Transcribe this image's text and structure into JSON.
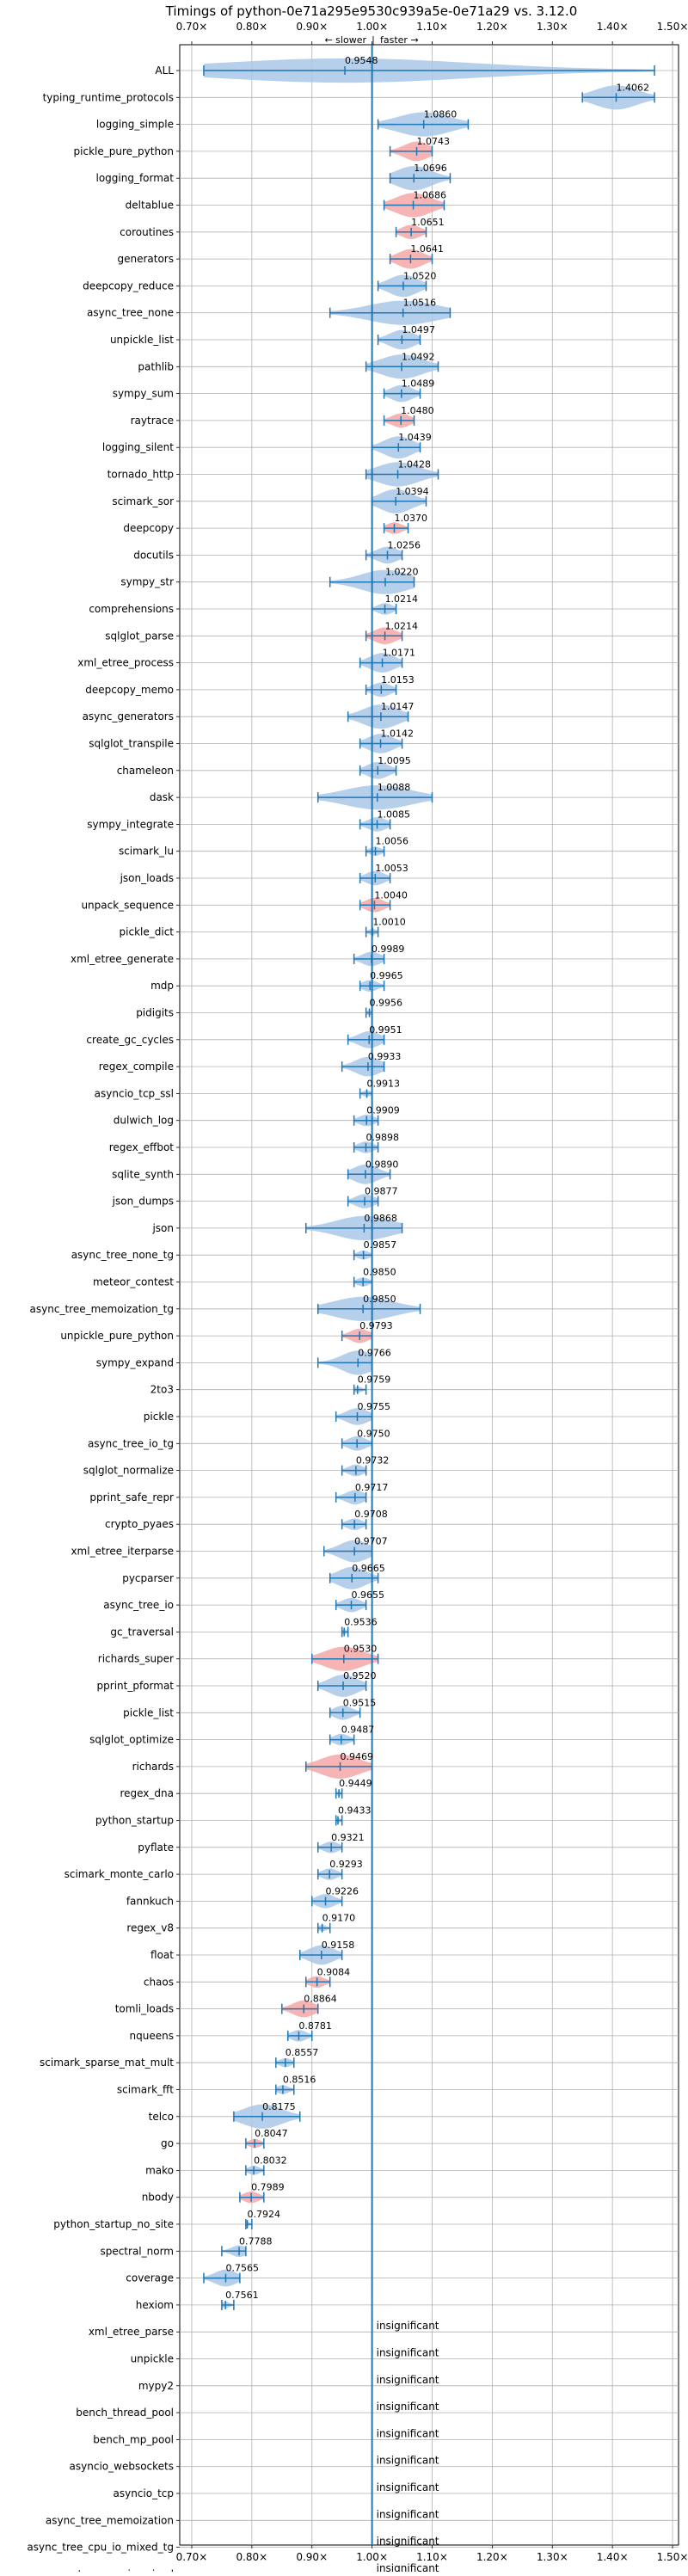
{
  "chart_data": {
    "type": "violin",
    "title": "Timings of python-0e71a295e9530c939a5e-0e71a29 vs. 3.12.0",
    "direction_labels": {
      "slower": "← slower",
      "separator": "|",
      "faster": "faster →"
    },
    "xlim": [
      0.68,
      1.51
    ],
    "x_ticks": [
      0.7,
      0.8,
      0.9,
      1.0,
      1.1,
      1.2,
      1.3,
      1.4,
      1.5
    ],
    "x_tick_labels": [
      "0.70×",
      "0.80×",
      "0.90×",
      "1.00×",
      "1.10×",
      "1.20×",
      "1.30×",
      "1.40×",
      "1.50×"
    ],
    "reference_line": 1.0,
    "grid": true,
    "colors": {
      "faster": "#a9c7e6",
      "slower": "#f4a7a7",
      "line": "#1f77b4",
      "insignificant": "#cccccc"
    },
    "benchmarks": [
      {
        "name": "ALL",
        "value": 0.9548,
        "label": "0.9548",
        "low": 0.72,
        "high": 1.47,
        "color": "faster"
      },
      {
        "name": "typing_runtime_protocols",
        "value": 1.4062,
        "label": "1.4062",
        "low": 1.35,
        "high": 1.47,
        "color": "faster"
      },
      {
        "name": "logging_simple",
        "value": 1.086,
        "label": "1.0860",
        "low": 1.01,
        "high": 1.16,
        "color": "faster"
      },
      {
        "name": "pickle_pure_python",
        "value": 1.0743,
        "label": "1.0743",
        "low": 1.03,
        "high": 1.1,
        "color": "slower"
      },
      {
        "name": "logging_format",
        "value": 1.0696,
        "label": "1.0696",
        "low": 1.03,
        "high": 1.13,
        "color": "faster"
      },
      {
        "name": "deltablue",
        "value": 1.0686,
        "label": "1.0686",
        "low": 1.02,
        "high": 1.12,
        "color": "slower"
      },
      {
        "name": "coroutines",
        "value": 1.0651,
        "label": "1.0651",
        "low": 1.04,
        "high": 1.09,
        "color": "slower"
      },
      {
        "name": "generators",
        "value": 1.0641,
        "label": "1.0641",
        "low": 1.03,
        "high": 1.1,
        "color": "slower"
      },
      {
        "name": "deepcopy_reduce",
        "value": 1.052,
        "label": "1.0520",
        "low": 1.01,
        "high": 1.09,
        "color": "faster"
      },
      {
        "name": "async_tree_none",
        "value": 1.0516,
        "label": "1.0516",
        "low": 0.93,
        "high": 1.13,
        "color": "faster"
      },
      {
        "name": "unpickle_list",
        "value": 1.0497,
        "label": "1.0497",
        "low": 1.01,
        "high": 1.08,
        "color": "faster"
      },
      {
        "name": "pathlib",
        "value": 1.0492,
        "label": "1.0492",
        "low": 0.99,
        "high": 1.11,
        "color": "faster"
      },
      {
        "name": "sympy_sum",
        "value": 1.0489,
        "label": "1.0489",
        "low": 1.02,
        "high": 1.08,
        "color": "faster"
      },
      {
        "name": "raytrace",
        "value": 1.048,
        "label": "1.0480",
        "low": 1.02,
        "high": 1.07,
        "color": "slower"
      },
      {
        "name": "logging_silent",
        "value": 1.0439,
        "label": "1.0439",
        "low": 1.0,
        "high": 1.08,
        "color": "faster"
      },
      {
        "name": "tornado_http",
        "value": 1.0428,
        "label": "1.0428",
        "low": 0.99,
        "high": 1.11,
        "color": "faster"
      },
      {
        "name": "scimark_sor",
        "value": 1.0394,
        "label": "1.0394",
        "low": 1.0,
        "high": 1.09,
        "color": "faster"
      },
      {
        "name": "deepcopy",
        "value": 1.037,
        "label": "1.0370",
        "low": 1.02,
        "high": 1.06,
        "color": "slower"
      },
      {
        "name": "docutils",
        "value": 1.0256,
        "label": "1.0256",
        "low": 0.99,
        "high": 1.05,
        "color": "faster"
      },
      {
        "name": "sympy_str",
        "value": 1.022,
        "label": "1.0220",
        "low": 0.93,
        "high": 1.07,
        "color": "faster"
      },
      {
        "name": "comprehensions",
        "value": 1.0214,
        "label": "1.0214",
        "low": 1.0,
        "high": 1.04,
        "color": "faster"
      },
      {
        "name": "sqlglot_parse",
        "value": 1.0214,
        "label": "1.0214",
        "low": 0.99,
        "high": 1.05,
        "color": "slower"
      },
      {
        "name": "xml_etree_process",
        "value": 1.0171,
        "label": "1.0171",
        "low": 0.98,
        "high": 1.05,
        "color": "faster"
      },
      {
        "name": "deepcopy_memo",
        "value": 1.0153,
        "label": "1.0153",
        "low": 0.99,
        "high": 1.04,
        "color": "faster"
      },
      {
        "name": "async_generators",
        "value": 1.0147,
        "label": "1.0147",
        "low": 0.96,
        "high": 1.06,
        "color": "faster"
      },
      {
        "name": "sqlglot_transpile",
        "value": 1.0142,
        "label": "1.0142",
        "low": 0.98,
        "high": 1.05,
        "color": "faster"
      },
      {
        "name": "chameleon",
        "value": 1.0095,
        "label": "1.0095",
        "low": 0.98,
        "high": 1.04,
        "color": "faster"
      },
      {
        "name": "dask",
        "value": 1.0088,
        "label": "1.0088",
        "low": 0.91,
        "high": 1.1,
        "color": "faster"
      },
      {
        "name": "sympy_integrate",
        "value": 1.0085,
        "label": "1.0085",
        "low": 0.98,
        "high": 1.03,
        "color": "faster"
      },
      {
        "name": "scimark_lu",
        "value": 1.0056,
        "label": "1.0056",
        "low": 0.99,
        "high": 1.02,
        "color": "faster"
      },
      {
        "name": "json_loads",
        "value": 1.0053,
        "label": "1.0053",
        "low": 0.98,
        "high": 1.03,
        "color": "faster"
      },
      {
        "name": "unpack_sequence",
        "value": 1.004,
        "label": "1.0040",
        "low": 0.98,
        "high": 1.03,
        "color": "slower"
      },
      {
        "name": "pickle_dict",
        "value": 1.001,
        "label": "1.0010",
        "low": 0.99,
        "high": 1.01,
        "color": "faster"
      },
      {
        "name": "xml_etree_generate",
        "value": 0.9989,
        "label": "0.9989",
        "low": 0.97,
        "high": 1.02,
        "color": "faster"
      },
      {
        "name": "mdp",
        "value": 0.9965,
        "label": "0.9965",
        "low": 0.98,
        "high": 1.02,
        "color": "faster"
      },
      {
        "name": "pidigits",
        "value": 0.9956,
        "label": "0.9956",
        "low": 0.99,
        "high": 1.0,
        "color": "faster"
      },
      {
        "name": "create_gc_cycles",
        "value": 0.9951,
        "label": "0.9951",
        "low": 0.96,
        "high": 1.02,
        "color": "faster"
      },
      {
        "name": "regex_compile",
        "value": 0.9933,
        "label": "0.9933",
        "low": 0.95,
        "high": 1.02,
        "color": "faster"
      },
      {
        "name": "asyncio_tcp_ssl",
        "value": 0.9913,
        "label": "0.9913",
        "low": 0.98,
        "high": 1.0,
        "color": "faster"
      },
      {
        "name": "dulwich_log",
        "value": 0.9909,
        "label": "0.9909",
        "low": 0.97,
        "high": 1.01,
        "color": "faster"
      },
      {
        "name": "regex_effbot",
        "value": 0.9898,
        "label": "0.9898",
        "low": 0.97,
        "high": 1.01,
        "color": "faster"
      },
      {
        "name": "sqlite_synth",
        "value": 0.989,
        "label": "0.9890",
        "low": 0.96,
        "high": 1.03,
        "color": "faster"
      },
      {
        "name": "json_dumps",
        "value": 0.9877,
        "label": "0.9877",
        "low": 0.96,
        "high": 1.01,
        "color": "faster"
      },
      {
        "name": "json",
        "value": 0.9868,
        "label": "0.9868",
        "low": 0.89,
        "high": 1.05,
        "color": "faster"
      },
      {
        "name": "async_tree_none_tg",
        "value": 0.9857,
        "label": "0.9857",
        "low": 0.97,
        "high": 1.0,
        "color": "faster"
      },
      {
        "name": "meteor_contest",
        "value": 0.985,
        "label": "0.9850",
        "low": 0.97,
        "high": 1.0,
        "color": "faster"
      },
      {
        "name": "async_tree_memoization_tg",
        "value": 0.985,
        "label": "0.9850",
        "low": 0.91,
        "high": 1.08,
        "color": "faster"
      },
      {
        "name": "unpickle_pure_python",
        "value": 0.9793,
        "label": "0.9793",
        "low": 0.95,
        "high": 1.0,
        "color": "slower"
      },
      {
        "name": "sympy_expand",
        "value": 0.9766,
        "label": "0.9766",
        "low": 0.91,
        "high": 1.0,
        "color": "faster"
      },
      {
        "name": "2to3",
        "value": 0.9759,
        "label": "0.9759",
        "low": 0.97,
        "high": 0.99,
        "color": "faster"
      },
      {
        "name": "pickle",
        "value": 0.9755,
        "label": "0.9755",
        "low": 0.94,
        "high": 1.0,
        "color": "faster"
      },
      {
        "name": "async_tree_io_tg",
        "value": 0.975,
        "label": "0.9750",
        "low": 0.95,
        "high": 1.0,
        "color": "faster"
      },
      {
        "name": "sqlglot_normalize",
        "value": 0.9732,
        "label": "0.9732",
        "low": 0.95,
        "high": 0.99,
        "color": "faster"
      },
      {
        "name": "pprint_safe_repr",
        "value": 0.9717,
        "label": "0.9717",
        "low": 0.94,
        "high": 0.99,
        "color": "faster"
      },
      {
        "name": "crypto_pyaes",
        "value": 0.9708,
        "label": "0.9708",
        "low": 0.95,
        "high": 0.99,
        "color": "faster"
      },
      {
        "name": "xml_etree_iterparse",
        "value": 0.9707,
        "label": "0.9707",
        "low": 0.92,
        "high": 1.0,
        "color": "faster"
      },
      {
        "name": "pycparser",
        "value": 0.9665,
        "label": "0.9665",
        "low": 0.93,
        "high": 1.01,
        "color": "faster"
      },
      {
        "name": "async_tree_io",
        "value": 0.9655,
        "label": "0.9655",
        "low": 0.94,
        "high": 0.99,
        "color": "faster"
      },
      {
        "name": "gc_traversal",
        "value": 0.9536,
        "label": "0.9536",
        "low": 0.95,
        "high": 0.96,
        "color": "faster"
      },
      {
        "name": "richards_super",
        "value": 0.953,
        "label": "0.9530",
        "low": 0.9,
        "high": 1.01,
        "color": "slower"
      },
      {
        "name": "pprint_pformat",
        "value": 0.952,
        "label": "0.9520",
        "low": 0.91,
        "high": 0.99,
        "color": "faster"
      },
      {
        "name": "pickle_list",
        "value": 0.9515,
        "label": "0.9515",
        "low": 0.93,
        "high": 0.98,
        "color": "faster"
      },
      {
        "name": "sqlglot_optimize",
        "value": 0.9487,
        "label": "0.9487",
        "low": 0.93,
        "high": 0.97,
        "color": "faster"
      },
      {
        "name": "richards",
        "value": 0.9469,
        "label": "0.9469",
        "low": 0.89,
        "high": 1.0,
        "color": "slower"
      },
      {
        "name": "regex_dna",
        "value": 0.9449,
        "label": "0.9449",
        "low": 0.94,
        "high": 0.95,
        "color": "faster"
      },
      {
        "name": "python_startup",
        "value": 0.9433,
        "label": "0.9433",
        "low": 0.94,
        "high": 0.95,
        "color": "faster"
      },
      {
        "name": "pyflate",
        "value": 0.9321,
        "label": "0.9321",
        "low": 0.91,
        "high": 0.95,
        "color": "faster"
      },
      {
        "name": "scimark_monte_carlo",
        "value": 0.9293,
        "label": "0.9293",
        "low": 0.91,
        "high": 0.95,
        "color": "faster"
      },
      {
        "name": "fannkuch",
        "value": 0.9226,
        "label": "0.9226",
        "low": 0.9,
        "high": 0.95,
        "color": "faster"
      },
      {
        "name": "regex_v8",
        "value": 0.917,
        "label": "0.9170",
        "low": 0.91,
        "high": 0.93,
        "color": "faster"
      },
      {
        "name": "float",
        "value": 0.9158,
        "label": "0.9158",
        "low": 0.88,
        "high": 0.95,
        "color": "faster"
      },
      {
        "name": "chaos",
        "value": 0.9084,
        "label": "0.9084",
        "low": 0.89,
        "high": 0.93,
        "color": "slower"
      },
      {
        "name": "tomli_loads",
        "value": 0.8864,
        "label": "0.8864",
        "low": 0.85,
        "high": 0.91,
        "color": "slower"
      },
      {
        "name": "nqueens",
        "value": 0.8781,
        "label": "0.8781",
        "low": 0.86,
        "high": 0.9,
        "color": "faster"
      },
      {
        "name": "scimark_sparse_mat_mult",
        "value": 0.8557,
        "label": "0.8557",
        "low": 0.84,
        "high": 0.87,
        "color": "faster"
      },
      {
        "name": "scimark_fft",
        "value": 0.8516,
        "label": "0.8516",
        "low": 0.84,
        "high": 0.87,
        "color": "faster"
      },
      {
        "name": "telco",
        "value": 0.8175,
        "label": "0.8175",
        "low": 0.77,
        "high": 0.88,
        "color": "faster"
      },
      {
        "name": "go",
        "value": 0.8047,
        "label": "0.8047",
        "low": 0.79,
        "high": 0.82,
        "color": "slower"
      },
      {
        "name": "mako",
        "value": 0.8032,
        "label": "0.8032",
        "low": 0.79,
        "high": 0.82,
        "color": "faster"
      },
      {
        "name": "nbody",
        "value": 0.7989,
        "label": "0.7989",
        "low": 0.78,
        "high": 0.82,
        "color": "slower"
      },
      {
        "name": "python_startup_no_site",
        "value": 0.7924,
        "label": "0.7924",
        "low": 0.79,
        "high": 0.8,
        "color": "faster"
      },
      {
        "name": "spectral_norm",
        "value": 0.7788,
        "label": "0.7788",
        "low": 0.75,
        "high": 0.79,
        "color": "faster"
      },
      {
        "name": "coverage",
        "value": 0.7565,
        "label": "0.7565",
        "low": 0.72,
        "high": 0.78,
        "color": "faster"
      },
      {
        "name": "hexiom",
        "value": 0.7561,
        "label": "0.7561",
        "low": 0.75,
        "high": 0.77,
        "color": "faster"
      },
      {
        "name": "xml_etree_parse",
        "value": null,
        "label": "insignificant"
      },
      {
        "name": "unpickle",
        "value": null,
        "label": "insignificant"
      },
      {
        "name": "mypy2",
        "value": null,
        "label": "insignificant"
      },
      {
        "name": "bench_thread_pool",
        "value": null,
        "label": "insignificant"
      },
      {
        "name": "bench_mp_pool",
        "value": null,
        "label": "insignificant"
      },
      {
        "name": "asyncio_websockets",
        "value": null,
        "label": "insignificant"
      },
      {
        "name": "asyncio_tcp",
        "value": null,
        "label": "insignificant"
      },
      {
        "name": "async_tree_memoization",
        "value": null,
        "label": "insignificant"
      },
      {
        "name": "async_tree_cpu_io_mixed_tg",
        "value": null,
        "label": "insignificant"
      },
      {
        "name": "async_tree_cpu_io_mixed",
        "value": null,
        "label": "insignificant"
      }
    ]
  }
}
